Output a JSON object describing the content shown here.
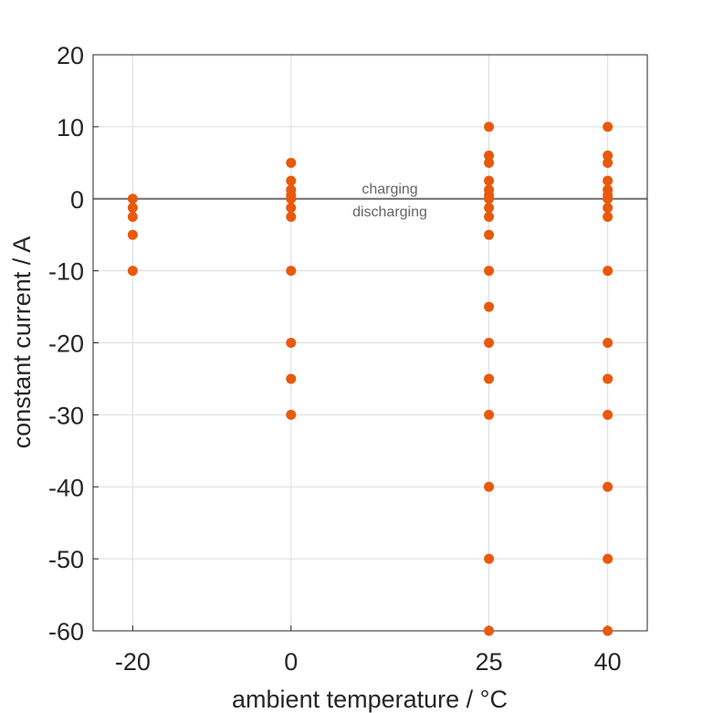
{
  "chart_data": {
    "type": "scatter",
    "xlabel": "ambient temperature / °C",
    "ylabel": "constant current / A",
    "xlim": [
      -25,
      45
    ],
    "ylim": [
      -60,
      20
    ],
    "xticks": [
      -20,
      0,
      25,
      40
    ],
    "yticks": [
      20,
      10,
      0,
      -10,
      -20,
      -30,
      -40,
      -50,
      -60
    ],
    "grid": true,
    "reference_line": 0,
    "annotations": [
      "charging",
      "discharging"
    ],
    "marker_color": "#e8590c",
    "series": [
      {
        "x": -20,
        "y": [
          0,
          -1.25,
          -2.5,
          -5,
          -10
        ]
      },
      {
        "x": 0,
        "y": [
          5,
          2.5,
          1.25,
          0.5,
          0,
          -1.25,
          -2.5,
          -10,
          -20,
          -25,
          -30
        ]
      },
      {
        "x": 25,
        "y": [
          10,
          6,
          5,
          2.5,
          1.25,
          0.5,
          0,
          -1.25,
          -2.5,
          -5,
          -10,
          -15,
          -20,
          -25,
          -30,
          -40,
          -50,
          -60
        ]
      },
      {
        "x": 40,
        "y": [
          10,
          6,
          5,
          2.5,
          1.25,
          0.5,
          0,
          -1.25,
          -2.5,
          -10,
          -20,
          -25,
          -30,
          -40,
          -50,
          -60
        ]
      }
    ]
  }
}
